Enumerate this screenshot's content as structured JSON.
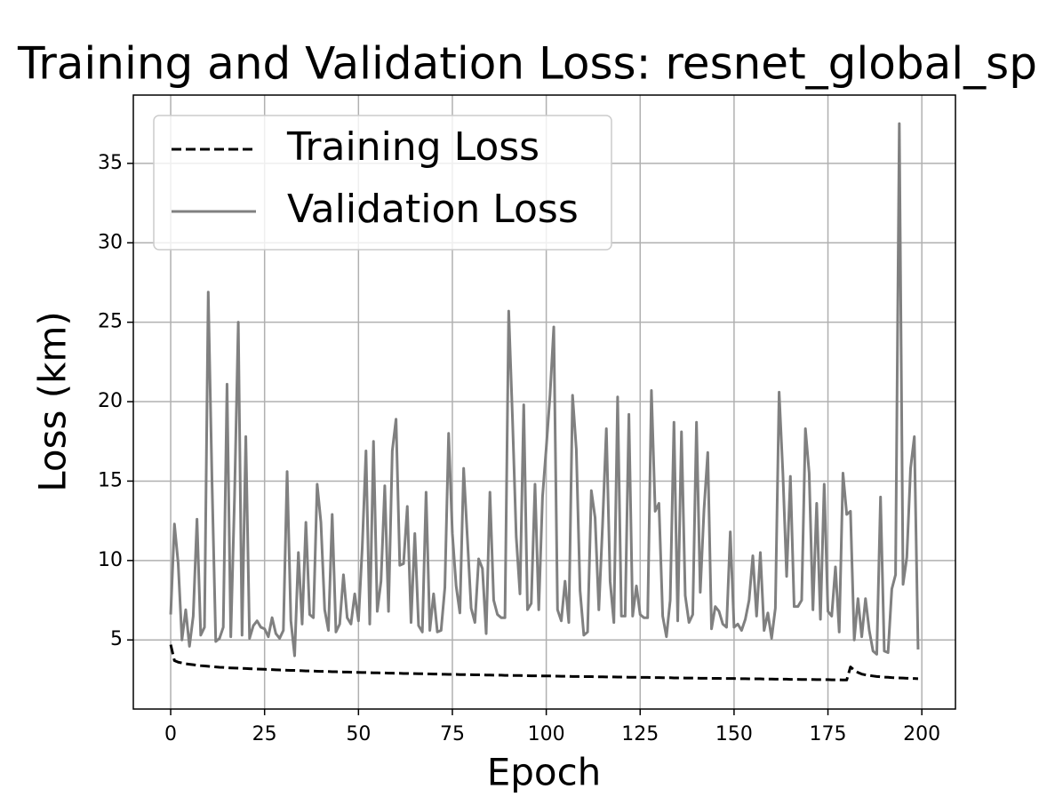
{
  "chart_data": {
    "type": "line",
    "title": "Training and Validation Loss: resnet_global_sp",
    "x_label": "Epoch",
    "y_label": "Loss (km)",
    "x": [
      0,
      1,
      2,
      3,
      4,
      5,
      6,
      7,
      8,
      9,
      10,
      11,
      12,
      13,
      14,
      15,
      16,
      17,
      18,
      19,
      20,
      21,
      22,
      23,
      24,
      25,
      26,
      27,
      28,
      29,
      30,
      31,
      32,
      33,
      34,
      35,
      36,
      37,
      38,
      39,
      40,
      41,
      42,
      43,
      44,
      45,
      46,
      47,
      48,
      49,
      50,
      51,
      52,
      53,
      54,
      55,
      56,
      57,
      58,
      59,
      60,
      61,
      62,
      63,
      64,
      65,
      66,
      67,
      68,
      69,
      70,
      71,
      72,
      73,
      74,
      75,
      76,
      77,
      78,
      79,
      80,
      81,
      82,
      83,
      84,
      85,
      86,
      87,
      88,
      89,
      90,
      91,
      92,
      93,
      94,
      95,
      96,
      97,
      98,
      99,
      100,
      101,
      102,
      103,
      104,
      105,
      106,
      107,
      108,
      109,
      110,
      111,
      112,
      113,
      114,
      115,
      116,
      117,
      118,
      119,
      120,
      121,
      122,
      123,
      124,
      125,
      126,
      127,
      128,
      129,
      130,
      131,
      132,
      133,
      134,
      135,
      136,
      137,
      138,
      139,
      140,
      141,
      142,
      143,
      144,
      145,
      146,
      147,
      148,
      149,
      150,
      151,
      152,
      153,
      154,
      155,
      156,
      157,
      158,
      159,
      160,
      161,
      162,
      163,
      164,
      165,
      166,
      167,
      168,
      169,
      170,
      171,
      172,
      173,
      174,
      175,
      176,
      177,
      178,
      179,
      180,
      181,
      182,
      183,
      184,
      185,
      186,
      187,
      188,
      189,
      190,
      191,
      192,
      193,
      194,
      195,
      196,
      197,
      198,
      199
    ],
    "series": [
      {
        "name": "Training Loss",
        "color": "#000000",
        "linestyle": "dashed",
        "values": [
          4.7,
          3.7,
          3.6,
          3.55,
          3.5,
          3.47,
          3.44,
          3.41,
          3.38,
          3.36,
          3.34,
          3.32,
          3.3,
          3.28,
          3.27,
          3.25,
          3.24,
          3.23,
          3.22,
          3.21,
          3.2,
          3.19,
          3.18,
          3.17,
          3.16,
          3.15,
          3.14,
          3.13,
          3.12,
          3.11,
          3.1,
          3.09,
          3.08,
          3.08,
          3.07,
          3.06,
          3.05,
          3.05,
          3.04,
          3.03,
          3.02,
          3.02,
          3.01,
          3.0,
          3.0,
          2.99,
          2.98,
          2.98,
          2.97,
          2.96,
          2.96,
          2.95,
          2.95,
          2.94,
          2.93,
          2.93,
          2.92,
          2.92,
          2.91,
          2.91,
          2.9,
          2.9,
          2.89,
          2.89,
          2.88,
          2.88,
          2.87,
          2.87,
          2.86,
          2.86,
          2.85,
          2.85,
          2.84,
          2.84,
          2.83,
          2.83,
          2.83,
          2.82,
          2.82,
          2.81,
          2.81,
          2.8,
          2.8,
          2.8,
          2.79,
          2.79,
          2.78,
          2.78,
          2.78,
          2.77,
          2.77,
          2.76,
          2.76,
          2.76,
          2.75,
          2.75,
          2.74,
          2.74,
          2.74,
          2.73,
          2.73,
          2.73,
          2.72,
          2.72,
          2.71,
          2.71,
          2.71,
          2.7,
          2.7,
          2.7,
          2.69,
          2.69,
          2.69,
          2.68,
          2.68,
          2.68,
          2.67,
          2.67,
          2.67,
          2.66,
          2.66,
          2.66,
          2.65,
          2.65,
          2.65,
          2.64,
          2.64,
          2.64,
          2.63,
          2.63,
          2.63,
          2.62,
          2.62,
          2.62,
          2.61,
          2.61,
          2.61,
          2.6,
          2.6,
          2.6,
          2.6,
          2.59,
          2.59,
          2.59,
          2.58,
          2.58,
          2.58,
          2.57,
          2.57,
          2.57,
          2.57,
          2.56,
          2.56,
          2.56,
          2.55,
          2.55,
          2.55,
          2.55,
          2.54,
          2.54,
          2.54,
          2.53,
          2.53,
          2.53,
          2.53,
          2.52,
          2.52,
          2.52,
          2.51,
          2.51,
          2.51,
          2.51,
          2.5,
          2.5,
          2.5,
          2.5,
          2.49,
          2.49,
          2.49,
          2.48,
          2.48,
          3.3,
          3.1,
          2.95,
          2.85,
          2.8,
          2.76,
          2.73,
          2.7,
          2.68,
          2.66,
          2.65,
          2.63,
          2.62,
          2.61,
          2.6,
          2.59,
          2.58,
          2.57,
          2.56
        ]
      },
      {
        "name": "Validation Loss",
        "color": "#808080",
        "linestyle": "solid",
        "values": [
          6.6,
          12.3,
          9.8,
          5.0,
          6.9,
          4.6,
          6.5,
          12.6,
          5.3,
          5.8,
          26.9,
          15,
          4.9,
          5.1,
          5.8,
          21.1,
          5.2,
          14,
          25.0,
          5.3,
          17.8,
          5.1,
          5.9,
          6.2,
          5.8,
          5.7,
          5.2,
          6.4,
          5.4,
          5.1,
          5.6,
          15.6,
          6.2,
          4.0,
          10.5,
          6.0,
          12.4,
          6.6,
          6.4,
          14.8,
          12.4,
          6.9,
          5.6,
          12.9,
          5.5,
          6.0,
          9.1,
          6.4,
          6.0,
          7.9,
          6.2,
          10.8,
          16.9,
          6.0,
          17.5,
          6.8,
          8.7,
          14.7,
          6.8,
          16.9,
          18.9,
          9.7,
          9.8,
          13.4,
          6.1,
          11.7,
          5.9,
          5.5,
          14.3,
          5.6,
          7.9,
          5.5,
          5.6,
          8.3,
          18.0,
          11.7,
          8.4,
          6.7,
          15.8,
          11.4,
          7.0,
          6.1,
          10.1,
          9.5,
          5.4,
          14.3,
          7.5,
          6.6,
          6.4,
          6.4,
          25.7,
          19.0,
          11.5,
          7.9,
          19.8,
          6.9,
          7.3,
          14.8,
          6.9,
          14.0,
          17.1,
          20.4,
          24.7,
          6.9,
          6.2,
          8.7,
          6.1,
          20.4,
          17.0,
          8.1,
          5.3,
          5.5,
          14.4,
          12.7,
          6.9,
          12.3,
          18.3,
          8.7,
          6.1,
          20.3,
          6.5,
          6.5,
          19.2,
          6.5,
          8.4,
          6.6,
          6.4,
          6.4,
          20.7,
          13.1,
          13.6,
          6.5,
          5.2,
          7.5,
          18.7,
          6.2,
          18.1,
          7.8,
          6.1,
          6.6,
          18.7,
          8.0,
          13.2,
          16.8,
          5.7,
          7.1,
          6.8,
          6.0,
          5.8,
          11.8,
          5.8,
          6.0,
          5.6,
          6.3,
          7.5,
          10.3,
          6.5,
          10.5,
          5.6,
          6.7,
          5.1,
          7.0,
          20.6,
          15.5,
          9.0,
          15.3,
          7.1,
          7.1,
          7.5,
          18.3,
          15.5,
          6.9,
          13.6,
          6.3,
          14.8,
          6.8,
          6.5,
          9.6,
          5.5,
          15.5,
          12.9,
          13.1,
          5.0,
          7.6,
          5.2,
          7.6,
          5.6,
          4.3,
          4.1,
          14.0,
          4.3,
          4.2,
          8.2,
          9.1,
          37.5,
          8.5,
          10.2,
          15.8,
          17.8,
          4.4
        ]
      }
    ],
    "xlim": [
      -9.95,
      208.95
    ],
    "ylim": [
      0.65,
      39.3
    ],
    "xticks": [
      0,
      25,
      50,
      75,
      100,
      125,
      150,
      175,
      200
    ],
    "yticks": [
      5,
      10,
      15,
      20,
      25,
      30,
      35
    ],
    "grid": true,
    "legend": "upper left"
  }
}
